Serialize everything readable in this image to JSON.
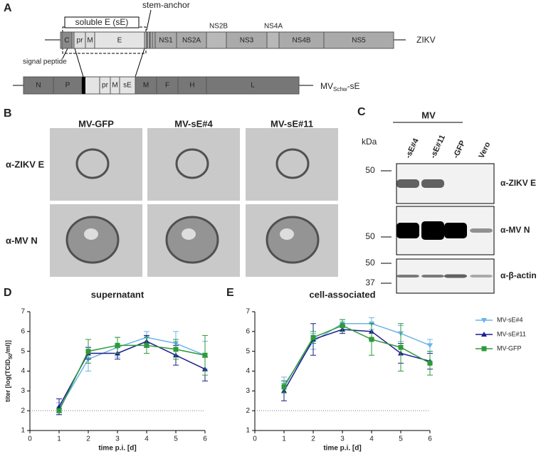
{
  "panel_a": {
    "label": "A",
    "soluble_e": "soluble E (sE)",
    "stem_anchor": "stem-anchor",
    "signal_peptide": "signal peptide",
    "zikv_segments": [
      "C",
      "pr",
      "M",
      "E",
      "NS1",
      "NS2A",
      "NS3",
      "NS4B",
      "NS5"
    ],
    "zikv_above": [
      "NS2B",
      "NS4A"
    ],
    "zikv": "ZIKV",
    "mv_segments": [
      "N",
      "P",
      "pr",
      "M",
      "sE",
      "M",
      "F",
      "H",
      "L"
    ],
    "mv_label": [
      "MV",
      "Schw",
      "-sE"
    ]
  },
  "panel_b": {
    "label": "B",
    "columns": [
      "MV-GFP",
      "MV-sE#4",
      "MV-sE#11"
    ],
    "rows": [
      "α-ZIKV E",
      "α-MV N"
    ]
  },
  "panel_c": {
    "label": "C",
    "group": "MV",
    "unit": "kDa",
    "lanes": [
      "-sE#4",
      "-sE#11",
      "-GFP",
      "Vero"
    ],
    "blots": [
      {
        "name": "α-ZIKV E",
        "markers": [
          50
        ]
      },
      {
        "name": "α-MV N",
        "markers": [
          50
        ]
      },
      {
        "name": "α-β-actin",
        "markers": [
          50,
          37
        ]
      }
    ]
  },
  "chart_data": [
    {
      "type": "line",
      "panel": "D",
      "title": "supernatant",
      "xlabel": "time p.i. [d]",
      "ylabel": [
        "titer [log(TCID",
        "50",
        "/ml)]"
      ],
      "x": [
        1,
        2,
        3,
        4,
        5,
        6
      ],
      "xlim": [
        0,
        6
      ],
      "xticks": [
        0,
        1,
        2,
        3,
        4,
        5,
        6
      ],
      "ylim": [
        1,
        7
      ],
      "yticks": [
        1,
        2,
        3,
        4,
        5,
        6,
        7
      ],
      "reference_line": 2,
      "legend": false,
      "series": [
        {
          "name": "MV-sE#4",
          "color": "#6cb4e8",
          "marker": "v",
          "values": [
            2.1,
            4.6,
            5.2,
            5.7,
            5.4,
            4.8
          ],
          "errors": [
            0.3,
            0.6,
            0.5,
            0.3,
            0.6,
            0.7
          ]
        },
        {
          "name": "MV-sE#11",
          "color": "#1c1c8c",
          "marker": "^",
          "values": [
            2.2,
            4.9,
            4.9,
            5.5,
            4.8,
            4.1
          ],
          "errors": [
            0.4,
            0.3,
            0.3,
            0.3,
            0.5,
            0.6
          ]
        },
        {
          "name": "MV-GFP",
          "color": "#2e9a3a",
          "marker": "s",
          "values": [
            2.0,
            5.0,
            5.3,
            5.3,
            5.1,
            4.8
          ],
          "errors": [
            0.1,
            0.6,
            0.4,
            0.4,
            0.5,
            1.0
          ]
        }
      ]
    },
    {
      "type": "line",
      "panel": "E",
      "title": "cell-associated",
      "xlabel": "time p.i. [d]",
      "x": [
        1,
        2,
        3,
        4,
        5,
        6
      ],
      "xlim": [
        0,
        6
      ],
      "xticks": [
        0,
        1,
        2,
        3,
        4,
        5,
        6
      ],
      "ylim": [
        1,
        7
      ],
      "yticks": [
        1,
        2,
        3,
        4,
        5,
        6,
        7
      ],
      "reference_line": 2,
      "legend": "right",
      "series": [
        {
          "name": "MV-sE#4",
          "color": "#6cb4e8",
          "marker": "v",
          "values": [
            3.3,
            5.5,
            6.4,
            6.4,
            5.9,
            5.3
          ],
          "errors": [
            0.4,
            0.4,
            0.2,
            0.3,
            0.4,
            0.3
          ]
        },
        {
          "name": "MV-sE#11",
          "color": "#1c1c8c",
          "marker": "^",
          "values": [
            3.0,
            5.6,
            6.1,
            6.0,
            4.9,
            4.5
          ],
          "errors": [
            0.5,
            0.8,
            0.2,
            0.4,
            0.5,
            0.4
          ]
        },
        {
          "name": "MV-GFP",
          "color": "#2e9a3a",
          "marker": "s",
          "values": [
            3.2,
            5.7,
            6.3,
            5.6,
            5.2,
            4.4
          ],
          "errors": [
            0.3,
            0.3,
            0.3,
            0.8,
            1.2,
            0.6
          ]
        }
      ]
    }
  ]
}
